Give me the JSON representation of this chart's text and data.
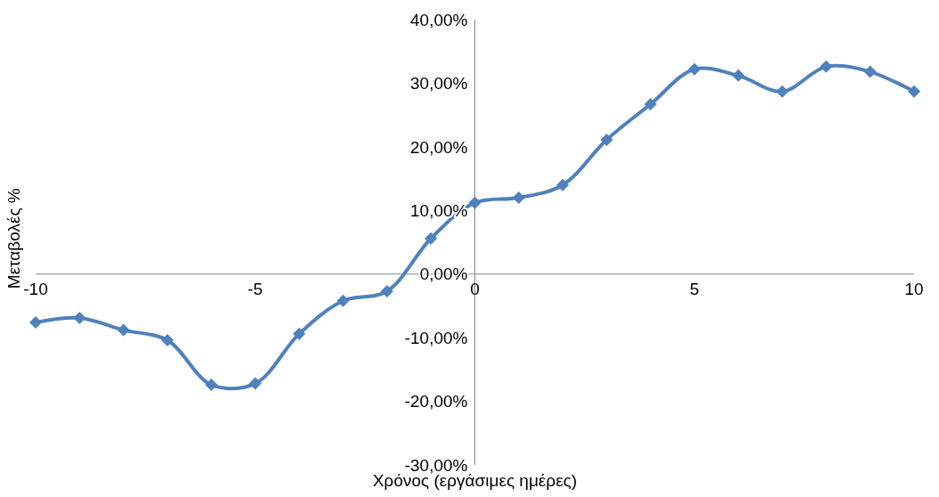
{
  "chart_data": {
    "type": "line",
    "xlabel": "Χρόνος (εργάσιμες ημέρες)",
    "ylabel": "Μεταβολές %",
    "x": [
      -10,
      -9,
      -8,
      -7,
      -6,
      -5,
      -4,
      -3,
      -2,
      -1,
      0,
      1,
      2,
      3,
      4,
      5,
      6,
      7,
      8,
      9,
      10
    ],
    "series": [
      {
        "color": "#4f81bd",
        "values": [
          -7.6,
          -6.9,
          -8.8,
          -10.4,
          -17.4,
          -17.2,
          -9.4,
          -4.2,
          -2.7,
          5.6,
          11.2,
          12.0,
          14.0,
          21.1,
          26.7,
          32.2,
          31.2,
          28.7,
          32.6,
          31.8,
          28.7
        ]
      }
    ],
    "xlim": [
      -10,
      10
    ],
    "xticks": [
      -10,
      -5,
      0,
      5,
      10
    ],
    "ylim": [
      -30,
      40
    ],
    "yticks": [
      {
        "value": -30,
        "label": "-30,00%"
      },
      {
        "value": -20,
        "label": "-20,00%"
      },
      {
        "value": -10,
        "label": "-10,00%"
      },
      {
        "value": 0,
        "label": "0,00%"
      },
      {
        "value": 10,
        "label": "10,00%"
      },
      {
        "value": 20,
        "label": "20,00%"
      },
      {
        "value": 30,
        "label": "30,00%"
      },
      {
        "value": 40,
        "label": "40,00%"
      }
    ],
    "marker": "diamond",
    "line_style": "solid",
    "grid": false
  }
}
